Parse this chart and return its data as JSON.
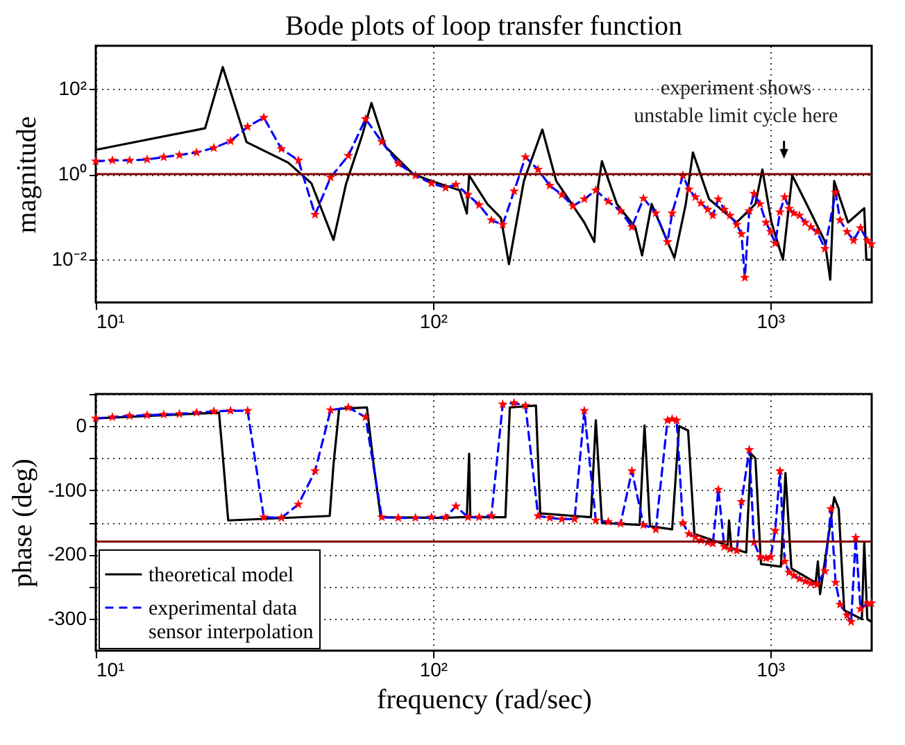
{
  "chart_data": [
    {
      "type": "line",
      "title": "Bode plots of loop transfer function",
      "ylabel": "magnitude",
      "log": "xy",
      "grid": true,
      "legend": false,
      "xlim": [
        10,
        2000
      ],
      "xticks": [
        {
          "value": 10,
          "label": "10¹"
        },
        {
          "value": 100,
          "label": "10²"
        },
        {
          "value": 1000,
          "label": "10³"
        }
      ],
      "ylim": [
        0.001,
        1000
      ],
      "yticks": [
        {
          "value": 0.01,
          "label": "10⁻²"
        },
        {
          "value": 1,
          "label": "10⁰"
        },
        {
          "value": 100,
          "label": "10²"
        }
      ],
      "ref_lines": [
        {
          "axis": "y",
          "value": 1,
          "color": "#800000"
        }
      ],
      "annotations": [
        "experiment shows\nunstable limit cycle here"
      ],
      "series": [
        {
          "color": "#000000",
          "line_style": "solid",
          "marker": "none",
          "x": [
            10,
            21.1,
            23.8,
            28,
            37.2,
            43.6,
            50.7,
            55.2,
            61.7,
            65.7,
            72.3,
            87.3,
            99,
            120,
            126,
            128,
            145,
            159,
            168,
            186,
            211,
            232,
            281,
            301,
            309,
            317,
            351,
            398,
            417,
            445,
            520,
            562,
            590,
            659,
            795,
            904,
            948,
            1009,
            1091,
            1163,
            1320,
            1452,
            1507,
            1548,
            1702,
            1901,
            1928,
            1990
          ],
          "values": [
            3.7,
            11.8,
            318,
            5.6,
            1.86,
            0.61,
            0.029,
            0.58,
            8.2,
            46,
            4.4,
            1,
            0.69,
            0.42,
            0.12,
            0.93,
            0.2,
            0.095,
            0.0079,
            0.69,
            11,
            0.69,
            0.074,
            0.026,
            0.54,
            2.0,
            0.2,
            0.057,
            0.0126,
            0.2,
            0.011,
            0.2,
            3.2,
            0.26,
            0.074,
            0.2,
            1.28,
            0.074,
            0.01,
            0.93,
            0.126,
            0.027,
            0.0034,
            0.69,
            0.074,
            0.16,
            0.01,
            0.01
          ]
        },
        {
          "color": "#0000ff",
          "line_style": "dashed",
          "marker": "star",
          "x": [
            10,
            11.2,
            12.6,
            14.2,
            15.9,
            17.7,
            19.9,
            22.4,
            25.1,
            28.2,
            31.5,
            35.5,
            39.9,
            44.7,
            49.7,
            56.1,
            63.1,
            70.5,
            78.9,
            88.7,
            99,
            109,
            117,
            127,
            137,
            149,
            161,
            174,
            188,
            205,
            222,
            241,
            260,
            281,
            304,
            331,
            360,
            389,
            421,
            458,
            496,
            512,
            551,
            574,
            600,
            623,
            653,
            676,
            702,
            731,
            760,
            796,
            822,
            841,
            867,
            896,
            933,
            972,
            1003,
            1035,
            1069,
            1104,
            1138,
            1175,
            1221,
            1271,
            1320,
            1377,
            1453,
            1563,
            1612,
            1690,
            1767,
            1853,
            1941,
            1995
          ],
          "values": [
            2.0,
            2.1,
            2.1,
            2.2,
            2.5,
            2.8,
            3.2,
            4.1,
            5.9,
            12.8,
            21,
            3.9,
            2.1,
            0.113,
            0.84,
            2.7,
            19.5,
            5.7,
            1.77,
            0.93,
            0.61,
            0.48,
            0.57,
            0.33,
            0.19,
            0.084,
            0.066,
            0.4,
            2.5,
            1.28,
            0.54,
            0.33,
            0.18,
            0.26,
            0.42,
            0.23,
            0.138,
            0.058,
            0.27,
            0.122,
            0.026,
            0.122,
            0.93,
            0.44,
            0.29,
            0.21,
            0.149,
            0.108,
            0.26,
            0.149,
            0.108,
            0.066,
            0.04,
            0.0038,
            0.138,
            0.35,
            0.2,
            0.074,
            0.045,
            0.024,
            0.129,
            0.29,
            0.156,
            0.122,
            0.108,
            0.074,
            0.058,
            0.045,
            0.018,
            0.37,
            0.084,
            0.045,
            0.028,
            0.055,
            0.028,
            0.023
          ],
          "colors": [
            "#ff0000",
            "#ff0000",
            "#ff0000",
            "#ff0000",
            "#ff0000",
            "#ff0000",
            "#ff0000",
            "#ff0000",
            "#ff0000",
            "#ff0000",
            "#ff0000",
            "#ff0000",
            "#ff0000",
            "#ff0000",
            "#ff0000",
            "#ff0000",
            "#ff0000",
            "#ff0000",
            "#ff0000",
            "#ff0000",
            "#ff0000",
            "#ff0000",
            "#ff0000",
            "#ff0000",
            "#ff0000",
            "#ff0000",
            "#ff0000",
            "#ff0000",
            "#ff0000",
            "#ff0000",
            "#ff0000",
            "#ff0000",
            "#ff0000",
            "#ff0000",
            "#ff0000",
            "#ff0000",
            "#ff0000",
            "#ff0000",
            "#ff0000",
            "#ff0000",
            "#ff0000",
            "#ff0000",
            "#ff0000",
            "#ff0000",
            "#ff0000",
            "#ff0000",
            "#ff0000",
            "#ff0000",
            "#ff0000",
            "#ff0000",
            "#ff0000",
            "#ff0000",
            "#ff0000",
            "#ff0000",
            "#ff0000",
            "#ff0000",
            "#ff0000",
            "#ff0000",
            "#ff0000",
            "#ff0000",
            "#ff0000",
            "#ff0000",
            "#ff0000",
            "#ff0000",
            "#ff0000",
            "#ff0000",
            "#ff0000",
            "#ff0000",
            "#ff0000",
            "#ff0000",
            "#ff0000",
            "#ff0000",
            "#ff0000",
            "#ff0000",
            "#ff0000",
            "#ff0000"
          ]
        }
      ]
    },
    {
      "type": "line",
      "xlabel": "frequency (rad/sec)",
      "ylabel": "phase (deg)",
      "log": "x",
      "grid": true,
      "legend": "bottom left",
      "xlim": [
        10,
        2000
      ],
      "xticks": [
        {
          "value": 10,
          "label": "10¹"
        },
        {
          "value": 100,
          "label": "10²"
        },
        {
          "value": 1000,
          "label": "10³"
        }
      ],
      "ylim": [
        -350,
        50
      ],
      "yticks": [
        -300,
        {
          "value": -250,
          "label": null
        },
        -200,
        {
          "value": -150,
          "label": null
        },
        -100,
        {
          "value": -50,
          "label": null
        },
        0,
        {
          "value": 50,
          "label": null
        }
      ],
      "ref_lines": [
        {
          "axis": "y",
          "value": -180,
          "color": "#800000"
        }
      ],
      "series": [
        {
          "name": "theoretical model",
          "color": "#000000",
          "line_style": "solid",
          "marker": "none",
          "x": [
            10,
            23.2,
            23.9,
            24.7,
            49.4,
            50.7,
            52.7,
            63.7,
            66.7,
            70,
            109,
            120,
            126,
            128,
            129,
            164,
            169,
            202,
            208,
            294,
            304,
            317,
            410,
            424,
            440,
            512,
            537,
            571,
            596,
            748,
            755,
            767,
            849,
            877,
            904,
            939,
            1076,
            1110,
            1156,
            1364,
            1385,
            1406,
            1548,
            1597,
            1658,
            1870,
            1901,
            1941,
            1995
          ],
          "values": [
            12,
            21,
            -57,
            -147,
            -140,
            -60,
            27,
            29,
            -60,
            -142,
            -143,
            -142,
            -142,
            -43,
            -142,
            -142,
            29,
            32,
            -136,
            -142,
            9,
            -151,
            -154,
            1,
            -156,
            -161,
            0,
            -7,
            -168,
            -186,
            -147,
            -190,
            -197,
            -43,
            -50,
            -215,
            -219,
            -73,
            -222,
            -244,
            -211,
            -262,
            -111,
            -129,
            -287,
            -301,
            -181,
            -301,
            -305
          ]
        },
        {
          "name": "experimental data sensor interpolation",
          "color": "#0000ff",
          "line_style": "dashed",
          "marker": "star",
          "x": [
            10,
            11.2,
            12.6,
            14.2,
            15.9,
            17.7,
            19.9,
            22.4,
            25.1,
            28.2,
            31.5,
            35.5,
            39.9,
            44.7,
            49.7,
            56.1,
            63.1,
            70.5,
            78.9,
            88.7,
            99,
            109,
            117,
            127,
            137,
            149,
            161,
            174,
            188,
            205,
            222,
            241,
            263,
            281,
            304,
            331,
            360,
            389,
            421,
            458,
            496,
            512,
            528,
            551,
            574,
            600,
            623,
            653,
            676,
            702,
            731,
            760,
            796,
            822,
            867,
            896,
            933,
            972,
            1003,
            1035,
            1069,
            1104,
            1138,
            1175,
            1221,
            1271,
            1320,
            1377,
            1453,
            1514,
            1563,
            1612,
            1690,
            1738,
            1793,
            1853,
            1941,
            1995
          ],
          "values": [
            12,
            14,
            16,
            17,
            18,
            19,
            21,
            23,
            24,
            24,
            -142,
            -143,
            -122,
            -70,
            25,
            29,
            14,
            -142,
            -143,
            -143,
            -142,
            -142,
            -125,
            -142,
            -142,
            -140,
            34,
            36,
            32,
            -140,
            -143,
            -145,
            -145,
            24,
            -147,
            -149,
            -152,
            -70,
            -154,
            -161,
            9,
            11,
            9,
            -151,
            -168,
            -173,
            -178,
            -181,
            -183,
            -99,
            -188,
            -192,
            -194,
            -118,
            -37,
            -181,
            -204,
            -206,
            -204,
            -163,
            -70,
            -211,
            -228,
            -233,
            -238,
            -242,
            -245,
            -247,
            -226,
            -129,
            -244,
            -278,
            -295,
            -305,
            -174,
            -285,
            -276,
            -276
          ],
          "colors": [
            "#ff0000",
            "#ff0000",
            "#ff0000",
            "#ff0000",
            "#ff0000",
            "#ff0000",
            "#ff0000",
            "#ff0000",
            "#ff0000",
            "#ff0000",
            "#ff0000",
            "#ff0000",
            "#ff0000",
            "#ff0000",
            "#ff0000",
            "#ff0000",
            "#ff0000",
            "#ff0000",
            "#ff0000",
            "#ff0000",
            "#ff0000",
            "#ff0000",
            "#ff0000",
            "#ff0000",
            "#ff0000",
            "#ff0000",
            "#ff0000",
            "#ff0000",
            "#ff0000",
            "#ff0000",
            "#ff0000",
            "#ff0000",
            "#ff0000",
            "#ff0000",
            "#ff0000",
            "#ff0000",
            "#ff0000",
            "#ff0000",
            "#ff0000",
            "#ff0000",
            "#ff0000",
            "#ff0000",
            "#ff0000",
            "#ff0000",
            "#ff0000",
            "#ff0000",
            "#ff0000",
            "#ff0000",
            "#ff0000",
            "#ff0000",
            "#ff0000",
            "#ff0000",
            "#ff0000",
            "#ff0000",
            "#ff0000",
            "#ff0000",
            "#ff0000",
            "#ff0000",
            "#ff0000",
            "#ff0000",
            "#ff0000",
            "#ff0000",
            "#ff0000",
            "#ff0000",
            "#ff0000",
            "#ff0000",
            "#ff0000",
            "#ff0000",
            "#ff0000",
            "#ff0000",
            "#ff0000",
            "#ff0000",
            "#ff0000",
            "#ff0000",
            "#ff0000",
            "#ff0000",
            "#ff0000",
            "#ff0000"
          ]
        }
      ]
    }
  ]
}
